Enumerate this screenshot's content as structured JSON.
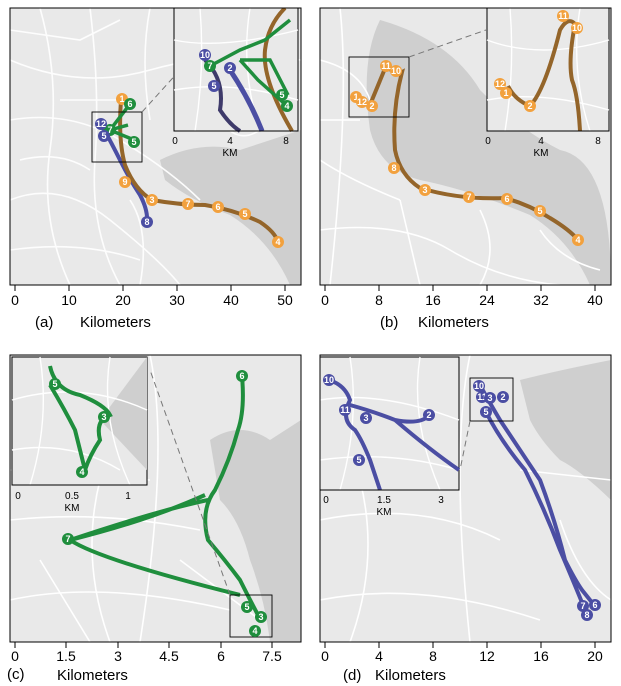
{
  "colors": {
    "brown": "#94652a",
    "orange": "#f2a13e",
    "green": "#1f8e3d",
    "purple": "#4b4ea3",
    "land": "#e9e9e9",
    "water": "#cfcfcf",
    "road": "#ffffff"
  },
  "panels": [
    {
      "id": "a",
      "caption_letter": "(a)",
      "caption_word": "Kilometers",
      "axis_ticks": [
        "0",
        "10",
        "20",
        "30",
        "40",
        "50"
      ],
      "inset_ticks": [
        "0",
        "4",
        "8"
      ],
      "inset_unit": "KM",
      "markers": {
        "orange": [
          "1",
          "2",
          "3",
          "4",
          "5",
          "6",
          "7",
          "8",
          "9"
        ],
        "green": [
          "2",
          "5",
          "6",
          "7"
        ],
        "purple": [
          "8",
          "10",
          "12",
          "13",
          "5"
        ]
      },
      "inset_markers": [
        "10",
        "7",
        "2",
        "5",
        "5",
        "4"
      ]
    },
    {
      "id": "b",
      "caption_letter": "(b)",
      "caption_word": "Kilometers",
      "axis_ticks": [
        "0",
        "8",
        "16",
        "24",
        "32",
        "40"
      ],
      "inset_ticks": [
        "0",
        "4",
        "8"
      ],
      "inset_unit": "KM",
      "markers": [
        "1",
        "2",
        "3",
        "4",
        "5",
        "6",
        "7",
        "8",
        "10",
        "11",
        "12"
      ],
      "inset_markers": [
        "11",
        "10",
        "12",
        "1",
        "2"
      ]
    },
    {
      "id": "c",
      "caption_letter": "(c)",
      "caption_word": "Kilometers",
      "axis_ticks": [
        "0",
        "1.5",
        "3",
        "4.5",
        "6",
        "7.5"
      ],
      "inset_ticks": [
        "0",
        "0.5",
        "1"
      ],
      "inset_unit": "KM",
      "markers": [
        "6",
        "7",
        "5",
        "3",
        "4"
      ],
      "inset_markers": [
        "5",
        "3",
        "4"
      ]
    },
    {
      "id": "d",
      "caption_letter": "(d)",
      "caption_word": "Kilometers",
      "axis_ticks": [
        "0",
        "4",
        "8",
        "12",
        "16",
        "20"
      ],
      "inset_ticks": [
        "0",
        "1.5",
        "3"
      ],
      "inset_unit": "KM",
      "markers": [
        "10",
        "11",
        "3",
        "2",
        "5",
        "7",
        "6",
        "8"
      ],
      "inset_markers": [
        "10",
        "11",
        "3",
        "2",
        "5"
      ]
    }
  ]
}
